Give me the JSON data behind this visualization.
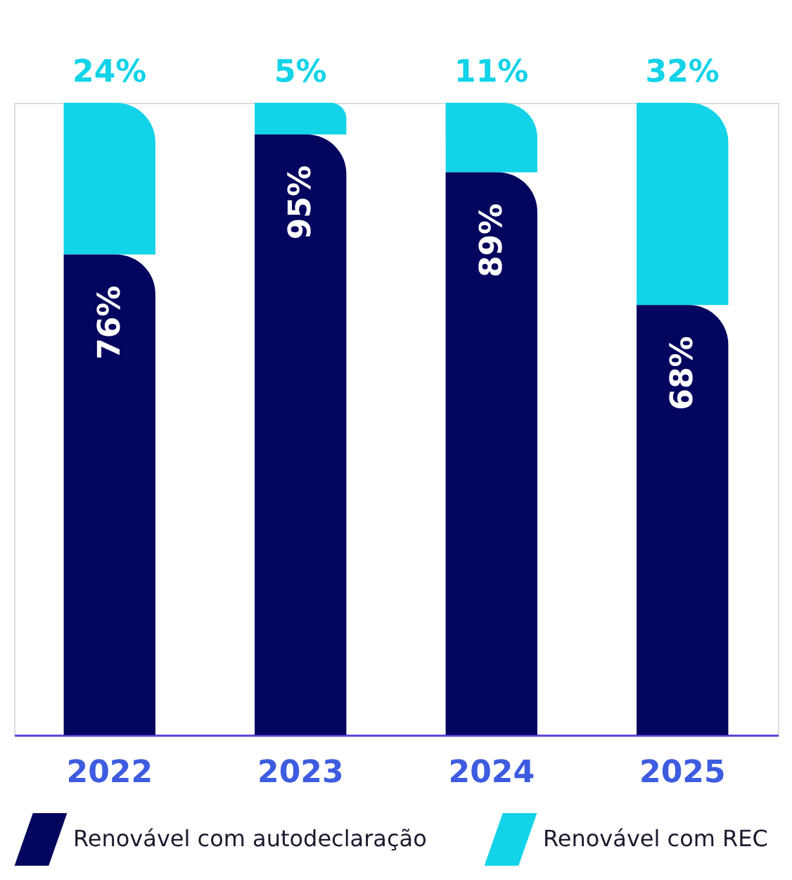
{
  "chart_data": {
    "type": "bar",
    "stacked": true,
    "legend": "bottom",
    "categories": [
      "2022",
      "2023",
      "2024",
      "2025"
    ],
    "series": [
      {
        "name": "Renovável com autodeclaração",
        "color": "#04055e",
        "values": [
          76,
          95,
          89,
          68
        ],
        "value_labels": [
          "76%",
          "95%",
          "89%",
          "68%"
        ]
      },
      {
        "name": "Renovável com REC",
        "color": "#12d3e8",
        "values": [
          24,
          5,
          11,
          32
        ],
        "value_labels": [
          "24%",
          "5%",
          "11%",
          "32%"
        ]
      }
    ]
  }
}
